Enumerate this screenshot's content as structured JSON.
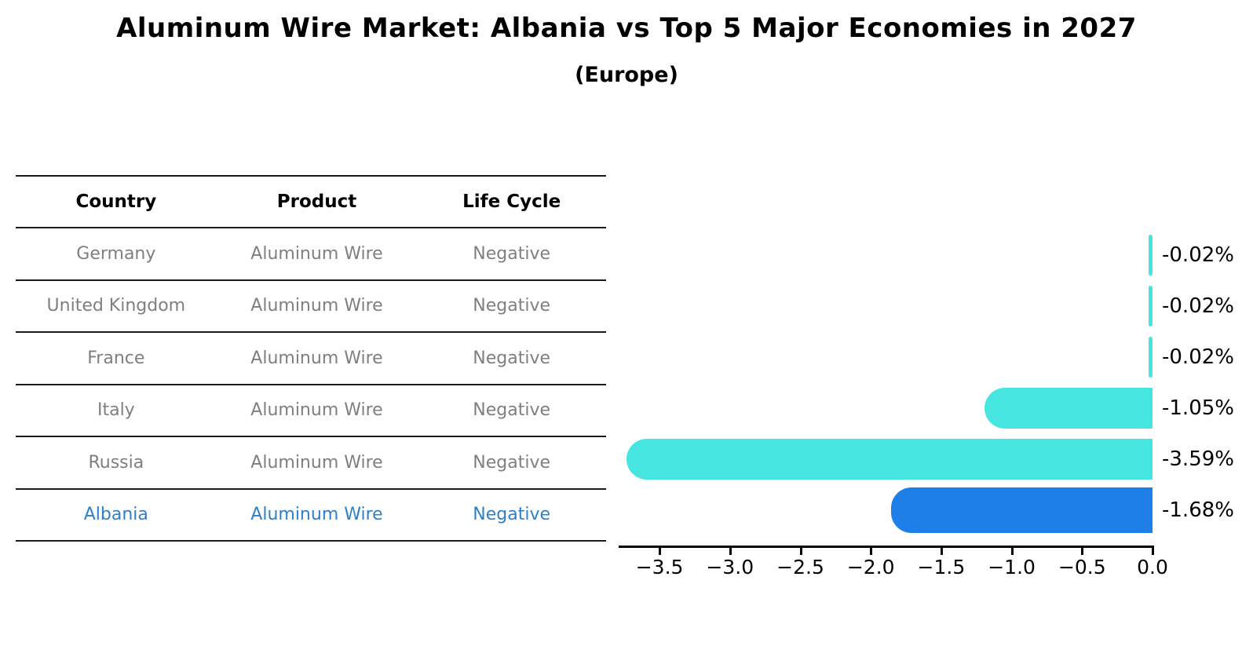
{
  "title": "Aluminum Wire Market: Albania vs Top 5 Major Economies in 2027",
  "subtitle": "(Europe)",
  "table": {
    "headers": [
      "Country",
      "Product",
      "Life Cycle"
    ],
    "rows": [
      {
        "country": "Germany",
        "product": "Aluminum Wire",
        "life_cycle": "Negative"
      },
      {
        "country": "United Kingdom",
        "product": "Aluminum Wire",
        "life_cycle": "Negative"
      },
      {
        "country": "France",
        "product": "Aluminum Wire",
        "life_cycle": "Negative"
      },
      {
        "country": "Italy",
        "product": "Aluminum Wire",
        "life_cycle": "Negative"
      },
      {
        "country": "Russia",
        "product": "Aluminum Wire",
        "life_cycle": "Negative"
      },
      {
        "country": "Albania",
        "product": "Aluminum Wire",
        "life_cycle": "Negative"
      }
    ],
    "highlight_row": "Albania"
  },
  "chart_data": {
    "type": "bar",
    "orientation": "horizontal",
    "categories": [
      "Germany",
      "United Kingdom",
      "France",
      "Italy",
      "Russia",
      "Albania"
    ],
    "values": [
      -0.02,
      -0.02,
      -0.02,
      -1.05,
      -3.59,
      -1.68
    ],
    "bar_labels": [
      "-0.02%",
      "-0.02%",
      "-0.02%",
      "-1.05%",
      "-3.59%",
      "-1.68%"
    ],
    "highlight_index": 5,
    "xticks": [
      -3.5,
      -3.0,
      -2.5,
      -2.0,
      -1.5,
      -1.0,
      -0.5,
      0.0
    ],
    "xticklabels": [
      "−3.5",
      "−3.0",
      "−2.5",
      "−2.0",
      "−1.5",
      "−1.0",
      "−0.5",
      "0.0"
    ],
    "xlim": [
      -3.8,
      0.0
    ],
    "grid": false,
    "legend": "none",
    "colors": {
      "bar_default": "#46e5e0",
      "bar_highlight": "#1e7fe8",
      "highlight_text": "#2e80c8",
      "table_text": "#7f7f7f",
      "axis_text": "#000000"
    }
  }
}
